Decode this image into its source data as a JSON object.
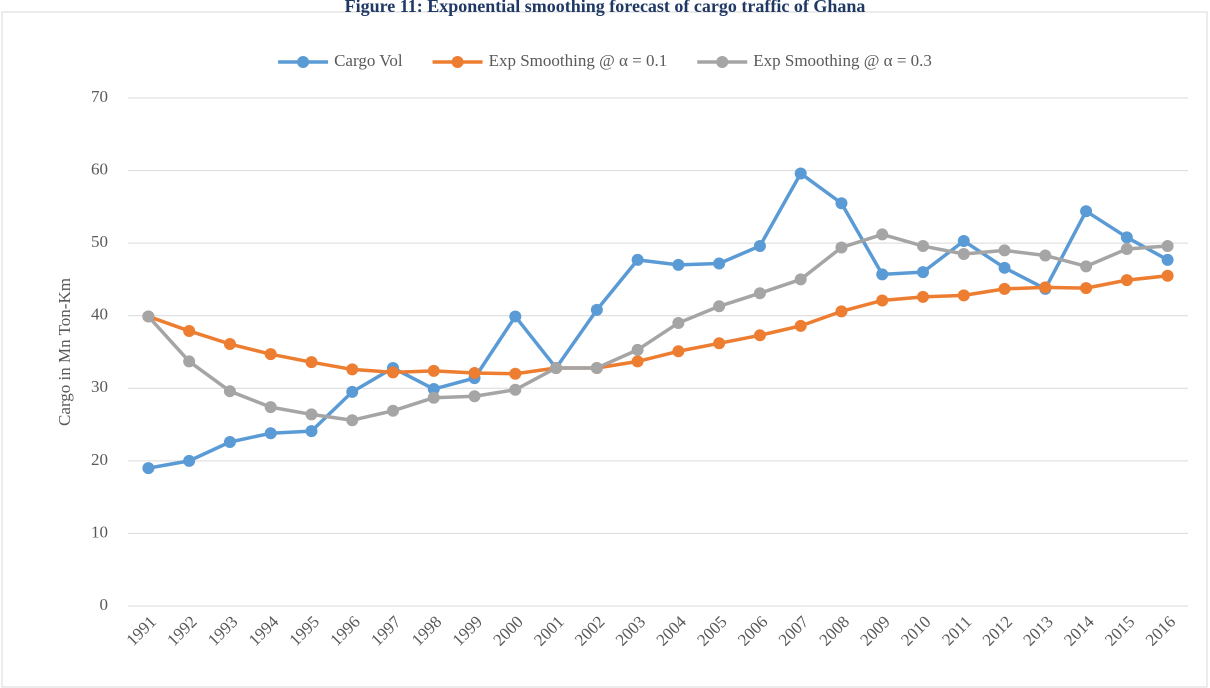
{
  "chart_data": {
    "type": "line",
    "title": "Figure 11: Exponential smoothing forecast of cargo traffic of Ghana",
    "y_label": "Cargo in Mn Ton-Km",
    "categories": [
      "1991",
      "1992",
      "1993",
      "1994",
      "1995",
      "1996",
      "1997",
      "1998",
      "1999",
      "2000",
      "2001",
      "2002",
      "2003",
      "2004",
      "2005",
      "2006",
      "2007",
      "2008",
      "2009",
      "2010",
      "2011",
      "2012",
      "2013",
      "2014",
      "2015",
      "2016"
    ],
    "series": [
      {
        "name": "Cargo Vol",
        "color": "#5b9bd5",
        "values": [
          19.0,
          20.0,
          22.6,
          23.8,
          24.1,
          29.5,
          32.8,
          29.9,
          31.4,
          39.9,
          32.8,
          40.8,
          47.7,
          47.0,
          47.2,
          49.6,
          59.6,
          55.5,
          45.7,
          46.0,
          50.3,
          46.6,
          43.7,
          54.4,
          50.8,
          47.7
        ]
      },
      {
        "name": "Exp Smoothing @ α = 0.1",
        "color": "#ed7d31",
        "values": [
          39.9,
          37.9,
          36.1,
          34.7,
          33.6,
          32.6,
          32.2,
          32.4,
          32.1,
          32.0,
          32.8,
          32.8,
          33.7,
          35.1,
          36.2,
          37.3,
          38.6,
          40.6,
          42.1,
          42.6,
          42.8,
          43.7,
          43.9,
          43.8,
          44.9,
          45.5
        ]
      },
      {
        "name": "Exp Smoothing @ α = 0.3",
        "color": "#a5a5a5",
        "values": [
          39.9,
          33.7,
          29.6,
          27.4,
          26.4,
          25.6,
          26.9,
          28.7,
          28.9,
          29.8,
          32.8,
          32.8,
          35.3,
          39.0,
          41.3,
          43.1,
          45.0,
          49.4,
          51.2,
          49.6,
          48.5,
          49.0,
          48.3,
          46.8,
          49.2,
          49.6
        ]
      }
    ],
    "ylim": [
      0,
      70
    ],
    "yticks": [
      0,
      10,
      20,
      30,
      40,
      50,
      60,
      70
    ],
    "grid": true,
    "legend": "top"
  }
}
